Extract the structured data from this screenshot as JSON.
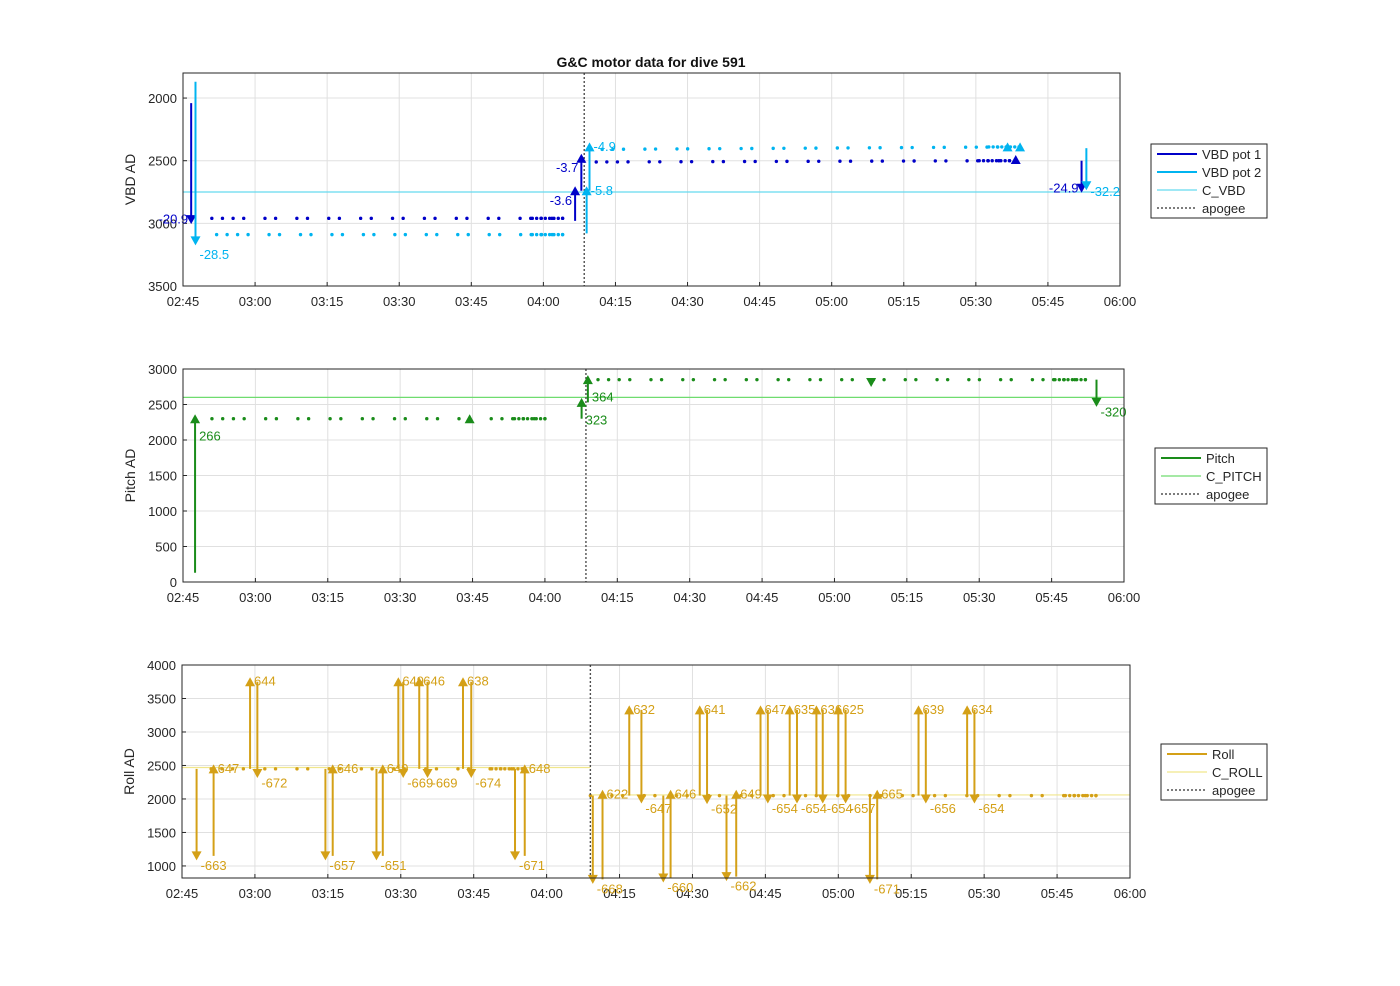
{
  "figure": {
    "title": "G&C motor data for dive 591"
  },
  "colors": {
    "vbd1": "#0000c8",
    "vbd2": "#00b4f0",
    "c_vbd": "#66d9ef",
    "pitch": "#1a8c1a",
    "c_pitch": "#6fdc6f",
    "roll": "#d4a017",
    "c_roll": "#f0e68c",
    "apogee": "#505050",
    "grid": "#e0e0e0"
  },
  "chart_data": [
    {
      "type": "line",
      "title": "G&C motor data for dive 591",
      "xlabel": "",
      "ylabel": "VBD AD",
      "x_ticks": [
        "02:45",
        "03:00",
        "03:15",
        "03:30",
        "03:45",
        "04:00",
        "04:15",
        "04:30",
        "04:45",
        "05:00",
        "05:15",
        "05:30",
        "05:45",
        "06:00"
      ],
      "xlim_min": [
        165,
        360
      ],
      "y_ticks": [
        "2000",
        "2500",
        "3000",
        "3500"
      ],
      "ylim": [
        3500,
        1800
      ],
      "y_reversed": true,
      "grid": true,
      "legend_position": "outside-right",
      "legend": [
        "VBD pot 1",
        "VBD pot 2",
        "C_VBD",
        "apogee"
      ],
      "apogee_min": 248.5,
      "reference_lines": [
        {
          "name": "C_VBD",
          "y": 2750
        }
      ],
      "series": [
        {
          "name": "VBD pot 1",
          "dots": {
            "x_start": 171,
            "x_end": 244,
            "y": 2960,
            "y2": 2960,
            "x_break": 244
          }
        },
        {
          "name": "VBD pot 1",
          "dots": {
            "x_start": 251,
            "x_end": 337,
            "y": 2510,
            "y2": 2500,
            "x_break": 337
          }
        },
        {
          "name": "VBD pot 2",
          "dots": {
            "x_start": 172,
            "x_end": 244,
            "y": 3090,
            "y2": 3090,
            "x_break": 244
          }
        },
        {
          "name": "VBD pot 2",
          "dots": {
            "x_start": 250,
            "x_end": 339,
            "y": 2410,
            "y2": 2390,
            "x_break": 339
          }
        }
      ],
      "motor_moves": [
        {
          "series": "VBD pot 1",
          "t": 166.7,
          "y0": 2040,
          "y1": 2970,
          "label": "-20.9"
        },
        {
          "series": "VBD pot 2",
          "t": 167.6,
          "y0": 1870,
          "y1": 3140,
          "label": "-28.5"
        },
        {
          "series": "VBD pot 1",
          "t": 246.6,
          "y0": 2980,
          "y1": 2740,
          "label": "-3.6"
        },
        {
          "series": "VBD pot 1",
          "t": 247.9,
          "y0": 2740,
          "y1": 2480,
          "label": "-3.7"
        },
        {
          "series": "VBD pot 2",
          "t": 249.0,
          "y0": 3080,
          "y1": 2740,
          "label": "-5.8"
        },
        {
          "series": "VBD pot 2",
          "t": 249.6,
          "y0": 2740,
          "y1": 2390,
          "label": "-4.9"
        },
        {
          "series": "VBD pot 2",
          "t": 336.6,
          "y0": 2390,
          "y1": 2390,
          "label": ""
        },
        {
          "series": "VBD pot 1",
          "t": 338.3,
          "y0": 2490,
          "y1": 2490,
          "label": ""
        },
        {
          "series": "VBD pot 2",
          "t": 339.2,
          "y0": 2390,
          "y1": 2390,
          "label": ""
        },
        {
          "series": "VBD pot 1",
          "t": 352.0,
          "y0": 2500,
          "y1": 2720,
          "label": "-24.9"
        },
        {
          "series": "VBD pot 2",
          "t": 353.0,
          "y0": 2400,
          "y1": 2700,
          "label": "-32.2"
        }
      ]
    },
    {
      "type": "line",
      "xlabel": "",
      "ylabel": "Pitch AD",
      "x_ticks": [
        "02:45",
        "03:00",
        "03:15",
        "03:30",
        "03:45",
        "04:00",
        "04:15",
        "04:30",
        "04:45",
        "05:00",
        "05:15",
        "05:30",
        "05:45",
        "06:00"
      ],
      "xlim_min": [
        165,
        360
      ],
      "y_ticks": [
        "0",
        "500",
        "1000",
        "1500",
        "2000",
        "2500",
        "3000"
      ],
      "ylim": [
        0,
        3000
      ],
      "grid": true,
      "legend_position": "outside-right",
      "legend": [
        "Pitch",
        "C_PITCH",
        "apogee"
      ],
      "apogee_min": 248.5,
      "reference_lines": [
        {
          "name": "C_PITCH",
          "y": 2600
        }
      ],
      "series": [
        {
          "name": "Pitch",
          "dots": {
            "x_start": 171,
            "x_end": 240,
            "y": 2300,
            "y2": 2300,
            "x_break": 240
          }
        },
        {
          "name": "Pitch",
          "dots": {
            "x_start": 251,
            "x_end": 352,
            "y": 2850,
            "y2": 2850,
            "x_break": 352
          }
        }
      ],
      "motor_moves": [
        {
          "series": "Pitch",
          "t": 167.5,
          "y0": 130,
          "y1": 2300,
          "label": "266"
        },
        {
          "series": "Pitch",
          "t": 224.4,
          "y0": 2300,
          "y1": 2300,
          "label": ""
        },
        {
          "series": "Pitch",
          "t": 247.6,
          "y0": 2300,
          "y1": 2530,
          "label": "323"
        },
        {
          "series": "Pitch",
          "t": 248.9,
          "y0": 2530,
          "y1": 2850,
          "label": "364"
        },
        {
          "series": "Pitch",
          "t": 307.6,
          "y0": 2850,
          "y1": 2810,
          "label": ""
        },
        {
          "series": "Pitch",
          "t": 354.3,
          "y0": 2850,
          "y1": 2530,
          "label": "-320"
        }
      ]
    },
    {
      "type": "line",
      "xlabel": "",
      "ylabel": "Roll AD",
      "x_ticks": [
        "02:45",
        "03:00",
        "03:15",
        "03:30",
        "03:45",
        "04:00",
        "04:15",
        "04:30",
        "04:45",
        "05:00",
        "05:15",
        "05:30",
        "05:45",
        "06:00"
      ],
      "xlim_min": [
        165,
        360
      ],
      "y_ticks": [
        "1000",
        "1500",
        "2000",
        "2500",
        "3000",
        "3500",
        "4000"
      ],
      "ylim": [
        820,
        4000
      ],
      "grid": true,
      "legend_position": "outside-right",
      "legend": [
        "Roll",
        "C_ROLL",
        "apogee"
      ],
      "apogee_min": 249.0,
      "reference_lines": [
        {
          "name": "C_ROLL",
          "y_before_apogee": 2470,
          "y_after_apogee": 2060
        }
      ],
      "series": [
        {
          "name": "Roll",
          "dots": {
            "x_start": 171,
            "x_end": 235,
            "y": 2450,
            "y2": 2450,
            "x_break": 235
          }
        },
        {
          "name": "Roll",
          "dots": {
            "x_start": 249,
            "x_end": 353,
            "y": 2050,
            "y2": 2050,
            "x_break": 353
          }
        }
      ],
      "motor_moves": [
        {
          "series": "Roll",
          "t": 168.0,
          "y0": 2450,
          "y1": 1150,
          "label": "-663"
        },
        {
          "series": "Roll",
          "t": 171.5,
          "y0": 1150,
          "y1": 2450,
          "label": "647"
        },
        {
          "series": "Roll",
          "t": 179.0,
          "y0": 2450,
          "y1": 3750,
          "label": "644"
        },
        {
          "series": "Roll",
          "t": 180.5,
          "y0": 3750,
          "y1": 2380,
          "label": "-672"
        },
        {
          "series": "Roll",
          "t": 194.5,
          "y0": 2450,
          "y1": 1150,
          "label": "-657"
        },
        {
          "series": "Roll",
          "t": 196.0,
          "y0": 1150,
          "y1": 2450,
          "label": "646"
        },
        {
          "series": "Roll",
          "t": 205.0,
          "y0": 2450,
          "y1": 1150,
          "label": "-651"
        },
        {
          "series": "Roll",
          "t": 206.3,
          "y0": 1150,
          "y1": 2450,
          "label": "649"
        },
        {
          "series": "Roll",
          "t": 209.5,
          "y0": 2450,
          "y1": 3750,
          "label": "649"
        },
        {
          "series": "Roll",
          "t": 210.5,
          "y0": 3750,
          "y1": 2380,
          "label": "-669"
        },
        {
          "series": "Roll",
          "t": 213.8,
          "y0": 2450,
          "y1": 3750,
          "label": "646"
        },
        {
          "series": "Roll",
          "t": 215.5,
          "y0": 3750,
          "y1": 2380,
          "label": "-669"
        },
        {
          "series": "Roll",
          "t": 222.8,
          "y0": 2450,
          "y1": 3750,
          "label": "638"
        },
        {
          "series": "Roll",
          "t": 224.5,
          "y0": 3750,
          "y1": 2380,
          "label": "-674"
        },
        {
          "series": "Roll",
          "t": 233.5,
          "y0": 2450,
          "y1": 1150,
          "label": "-671"
        },
        {
          "series": "Roll",
          "t": 235.5,
          "y0": 1150,
          "y1": 2450,
          "label": "648"
        },
        {
          "series": "Roll",
          "t": 249.5,
          "y0": 2050,
          "y1": 800,
          "label": "-668"
        },
        {
          "series": "Roll",
          "t": 251.5,
          "y0": 800,
          "y1": 2070,
          "label": "622"
        },
        {
          "series": "Roll",
          "t": 257.0,
          "y0": 2050,
          "y1": 3330,
          "label": "632"
        },
        {
          "series": "Roll",
          "t": 259.5,
          "y0": 3330,
          "y1": 2000,
          "label": "-647"
        },
        {
          "series": "Roll",
          "t": 264.0,
          "y0": 2050,
          "y1": 820,
          "label": "-660"
        },
        {
          "series": "Roll",
          "t": 265.5,
          "y0": 820,
          "y1": 2070,
          "label": "646"
        },
        {
          "series": "Roll",
          "t": 271.5,
          "y0": 2050,
          "y1": 3330,
          "label": "641"
        },
        {
          "series": "Roll",
          "t": 273.0,
          "y0": 3330,
          "y1": 1990,
          "label": "-652"
        },
        {
          "series": "Roll",
          "t": 277.0,
          "y0": 2050,
          "y1": 840,
          "label": "-662"
        },
        {
          "series": "Roll",
          "t": 279.0,
          "y0": 840,
          "y1": 2070,
          "label": "649"
        },
        {
          "series": "Roll",
          "t": 284.0,
          "y0": 2050,
          "y1": 3330,
          "label": "647"
        },
        {
          "series": "Roll",
          "t": 285.5,
          "y0": 3330,
          "y1": 2000,
          "label": "-654"
        },
        {
          "series": "Roll",
          "t": 290.0,
          "y0": 2050,
          "y1": 3330,
          "label": "635"
        },
        {
          "series": "Roll",
          "t": 291.5,
          "y0": 3330,
          "y1": 2000,
          "label": "-654"
        },
        {
          "series": "Roll",
          "t": 295.5,
          "y0": 2050,
          "y1": 3330,
          "label": "636"
        },
        {
          "series": "Roll",
          "t": 296.8,
          "y0": 3330,
          "y1": 2000,
          "label": "-654"
        },
        {
          "series": "Roll",
          "t": 300.0,
          "y0": 2050,
          "y1": 3330,
          "label": "625"
        },
        {
          "series": "Roll",
          "t": 301.5,
          "y0": 3330,
          "y1": 2000,
          "label": "-657"
        },
        {
          "series": "Roll",
          "t": 306.5,
          "y0": 2050,
          "y1": 800,
          "label": "-671"
        },
        {
          "series": "Roll",
          "t": 308.0,
          "y0": 800,
          "y1": 2070,
          "label": "665"
        },
        {
          "series": "Roll",
          "t": 316.5,
          "y0": 2050,
          "y1": 3330,
          "label": "639"
        },
        {
          "series": "Roll",
          "t": 318.0,
          "y0": 3330,
          "y1": 2000,
          "label": "-656"
        },
        {
          "series": "Roll",
          "t": 326.5,
          "y0": 2050,
          "y1": 3330,
          "label": "634"
        },
        {
          "series": "Roll",
          "t": 328.0,
          "y0": 3330,
          "y1": 2000,
          "label": "-654"
        }
      ]
    }
  ]
}
